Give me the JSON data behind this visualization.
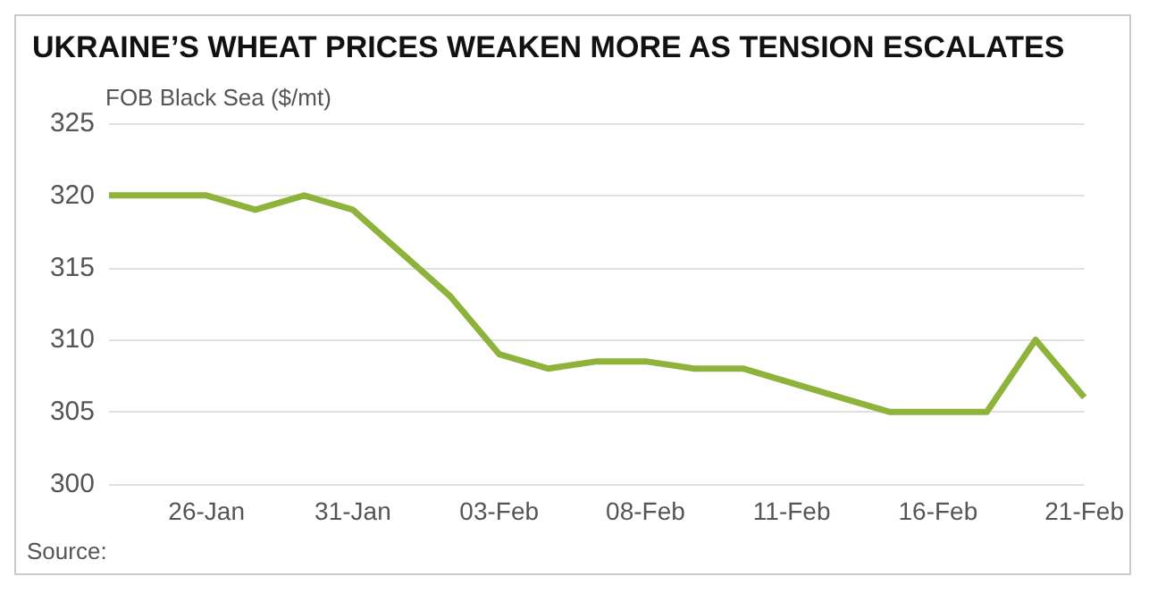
{
  "chart_data": {
    "type": "line",
    "title": "UKRAINE’S WHEAT PRICES WEAKEN MORE AS TENSION ESCALATES",
    "ylabel": "FOB Black Sea ($/mt)",
    "annotations": [
      "Source:"
    ],
    "categories": [
      null,
      null,
      "26-Jan",
      null,
      null,
      "31-Jan",
      null,
      null,
      "03-Feb",
      null,
      null,
      "08-Feb",
      null,
      null,
      "11-Feb",
      null,
      null,
      "16-Feb",
      null,
      null,
      "21-Feb"
    ],
    "series": [
      {
        "color": "#8db33a",
        "values": [
          320,
          320,
          320,
          319,
          320,
          319,
          316,
          313,
          309,
          308,
          308.5,
          308.5,
          308,
          308,
          307,
          306,
          305,
          305,
          305,
          310,
          306
        ]
      }
    ],
    "ylim": [
      300,
      325
    ],
    "yticks": [
      300,
      305,
      310,
      315,
      320,
      325
    ],
    "grid": "y",
    "marker": "none",
    "line_style": "solid"
  }
}
